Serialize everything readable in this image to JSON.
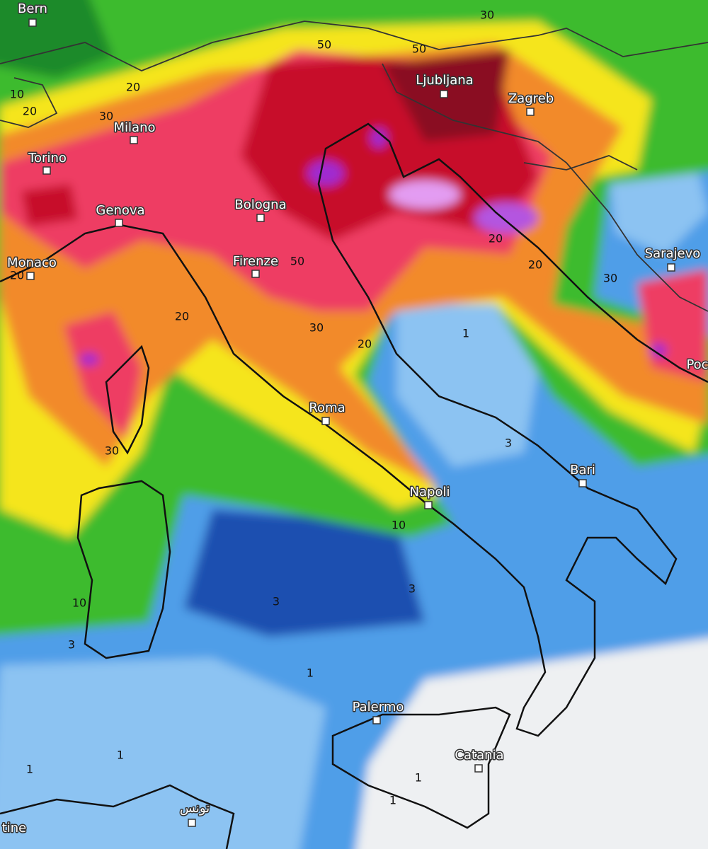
{
  "cities": [
    {
      "name": "Bern"
    },
    {
      "name": "Milano"
    },
    {
      "name": "Torino"
    },
    {
      "name": "Genova"
    },
    {
      "name": "Monaco"
    },
    {
      "name": "Bologna"
    },
    {
      "name": "Firenze"
    },
    {
      "name": "Ljubljana"
    },
    {
      "name": "Zagreb"
    },
    {
      "name": "Sarajevo"
    },
    {
      "name": "Roma"
    },
    {
      "name": "Napoli"
    },
    {
      "name": "Bari"
    },
    {
      "name": "Palermo"
    },
    {
      "name": "Catania"
    },
    {
      "name": "تونس"
    },
    {
      "name": "tine"
    },
    {
      "name": "Poc"
    }
  ],
  "contour_labels": [
    30,
    50,
    50,
    20,
    10,
    20,
    30,
    50,
    20,
    20,
    30,
    20,
    20,
    30,
    20,
    30,
    1,
    3,
    10,
    3,
    3,
    10,
    3,
    1,
    1,
    1,
    1,
    1
  ]
}
